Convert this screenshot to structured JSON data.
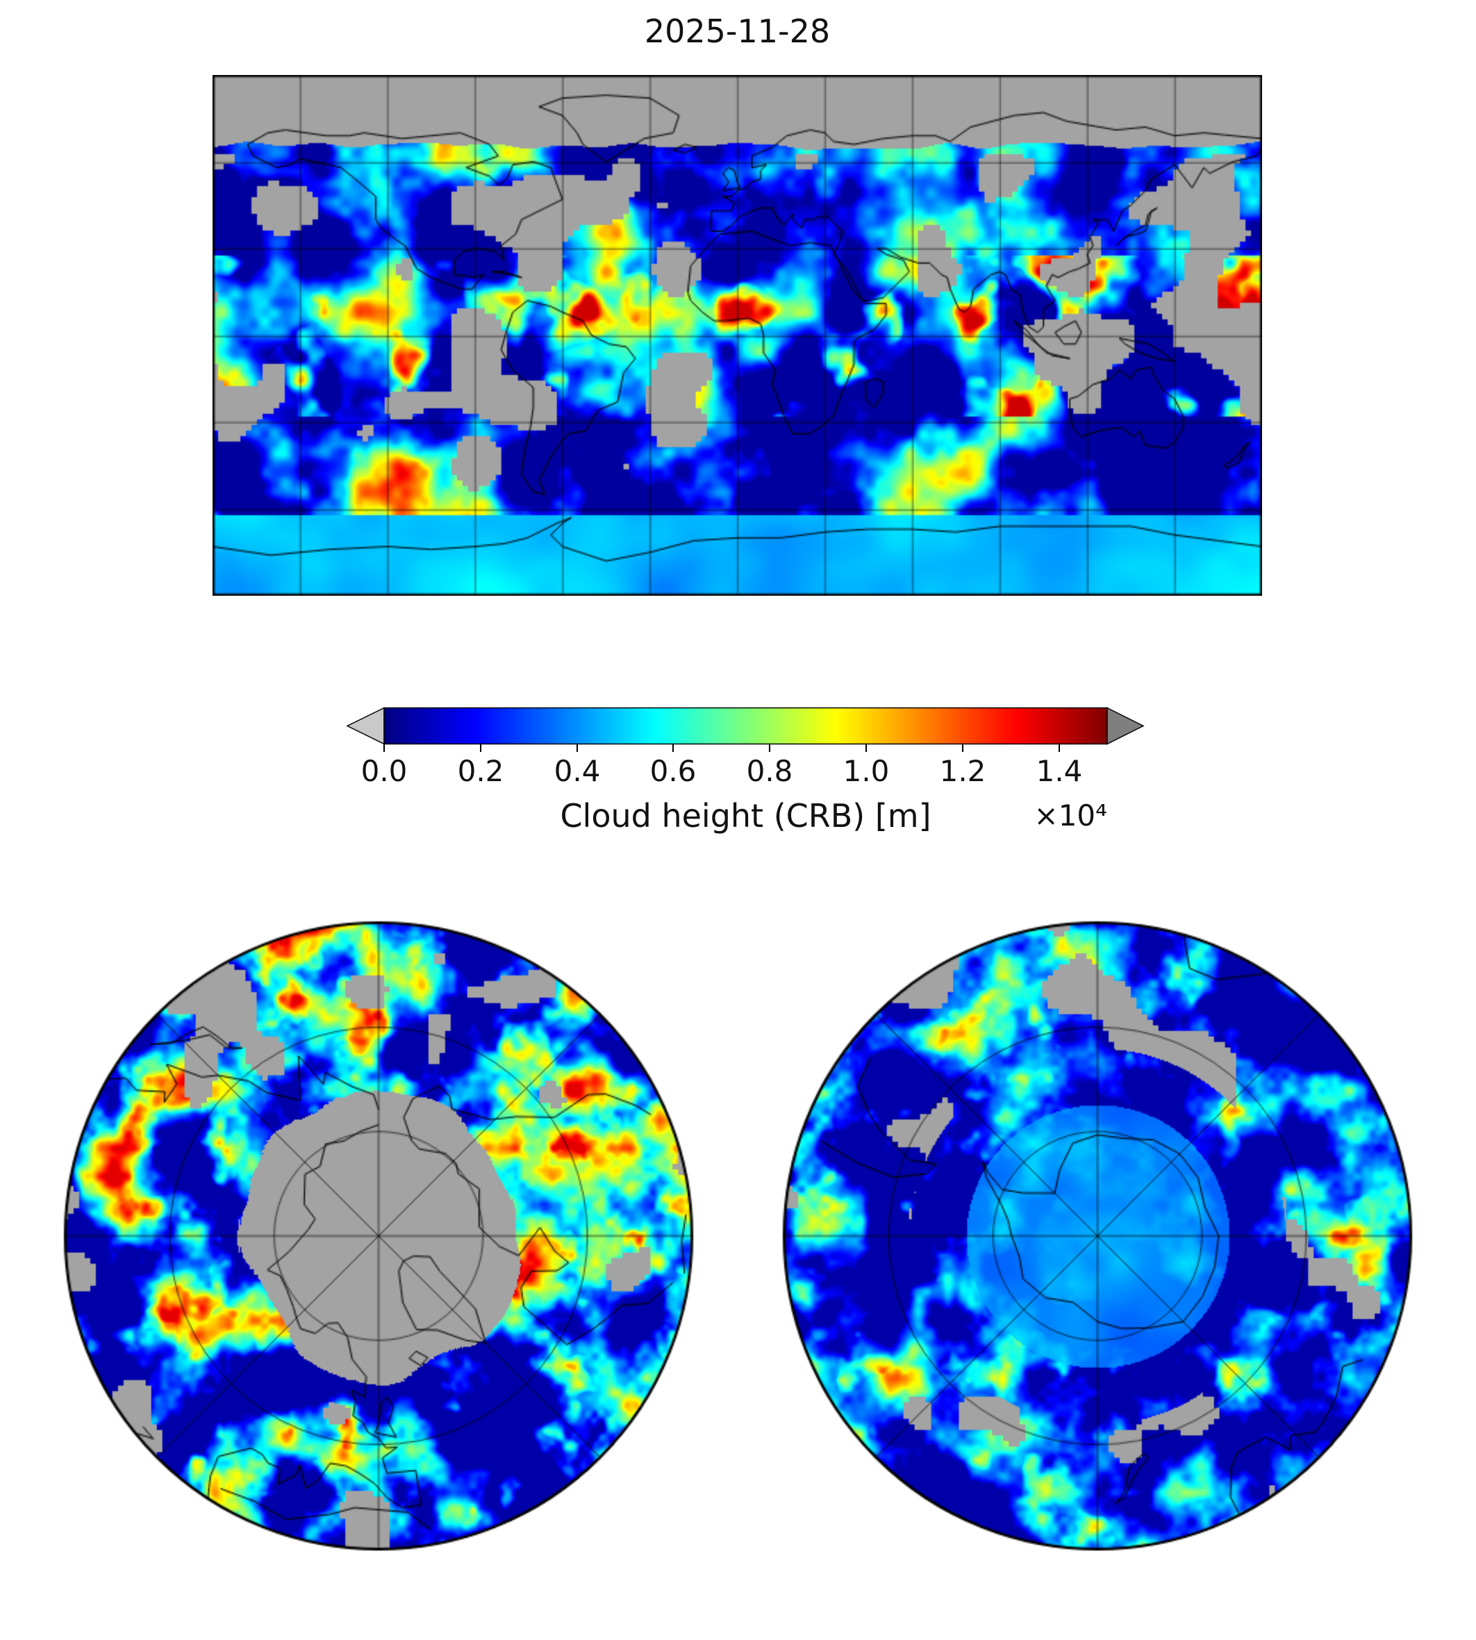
{
  "figure": {
    "title": "2025-11-28",
    "missing_data_color": "#a3a3a3",
    "colorbar": {
      "label": "Cloud height (CRB) [m]",
      "offset_text": "×10⁴",
      "tick_labels": [
        "0.0",
        "0.2",
        "0.4",
        "0.6",
        "0.8",
        "1.0",
        "1.2",
        "1.4"
      ],
      "colormap": "jet",
      "under_arrow_color": "#c9c9c9",
      "over_arrow_color": "#7f7f7f"
    }
  },
  "chart_data": {
    "type": "heatmap",
    "title": "2025-11-28",
    "variable": "Cloud height (CRB) [m]",
    "units_multiplier": "×10⁴",
    "colormap": "jet",
    "value_min_1e4_m": 0.0,
    "value_max_1e4_m": 1.5,
    "colorbar_ticks_1e4_m": [
      0.0,
      0.2,
      0.4,
      0.6,
      0.8,
      1.0,
      1.2,
      1.4
    ],
    "missing_data": "gray",
    "panels": [
      {
        "id": "global",
        "projection": "equirectangular",
        "lon_range": [
          -180,
          180
        ],
        "lat_range": [
          -90,
          90
        ],
        "gridline_spacing_deg": 30,
        "notes": "gray no-data band poleward of ~67N (polar night); scattered gray missing blocks over land; mostly low blue cloud with cyan/green storm tracks and yellow high cloud in tropics; smooth light-cyan cloud over Antarctica"
      },
      {
        "id": "north-polar",
        "projection": "north polar stereographic",
        "gridlines": "8 spokes every 45 deg, 2 latitude circles",
        "notes": "large gray missing-data cap centered on North Pole; surrounding ring of blue/cyan/green cloud"
      },
      {
        "id": "south-polar",
        "projection": "south polar stereographic",
        "gridlines": "8 spokes every 45 deg, 2 latitude circles",
        "notes": "smooth pale blue cloud over Antarctic interior; blue marine cloud around; few gray missing blocks near rim"
      }
    ]
  }
}
